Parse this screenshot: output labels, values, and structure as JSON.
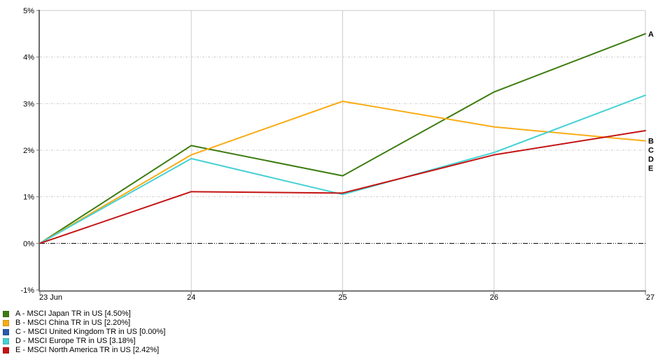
{
  "chart_data": {
    "type": "line",
    "title": "",
    "xlabel": "",
    "ylabel": "",
    "x_categories": [
      "23 Jun",
      "24",
      "25",
      "26",
      "27"
    ],
    "y_ticks": [
      "5%",
      "4%",
      "3%",
      "2%",
      "1%",
      "0%",
      "-1%"
    ],
    "ylim": [
      -1,
      5
    ],
    "grid": true,
    "legend_position": "bottom-left",
    "zero_line_color": "#000000",
    "grid_color": "#cccccc",
    "axis_color": "#6b6b6b",
    "series": [
      {
        "letter": "A",
        "name": "MSCI Japan TR in US",
        "final_value": "4.50%",
        "color": "#3d7c10",
        "plotted": true,
        "values": [
          0.0,
          2.1,
          1.45,
          3.25,
          4.5
        ],
        "legend_label": "A - MSCI Japan TR in US [4.50%]"
      },
      {
        "letter": "B",
        "name": "MSCI China TR in US",
        "final_value": "2.20%",
        "color": "#f9ac15",
        "plotted": true,
        "values": [
          0.0,
          1.9,
          3.05,
          2.5,
          2.2
        ],
        "legend_label": "B - MSCI China TR in US [2.20%]"
      },
      {
        "letter": "C",
        "name": "MSCI United Kingdom TR in US",
        "final_value": "0.00%",
        "color": "#2b59a8",
        "plotted": false,
        "values": [
          0.0,
          0.0,
          0.0,
          0.0,
          0.0
        ],
        "legend_label": "C - MSCI United Kingdom TR in US [0.00%]"
      },
      {
        "letter": "D",
        "name": "MSCI Europe TR in US",
        "final_value": "3.18%",
        "color": "#45d1d4",
        "plotted": true,
        "values": [
          0.0,
          1.82,
          1.05,
          1.95,
          3.18
        ],
        "legend_label": "D - MSCI Europe TR in US [3.18%]"
      },
      {
        "letter": "E",
        "name": "MSCI North America TR in US",
        "final_value": "2.42%",
        "color": "#c41313",
        "plotted": true,
        "values": [
          0.0,
          1.11,
          1.08,
          1.9,
          2.42
        ],
        "legend_label": "E - MSCI North America TR in US [2.42%]"
      }
    ]
  }
}
